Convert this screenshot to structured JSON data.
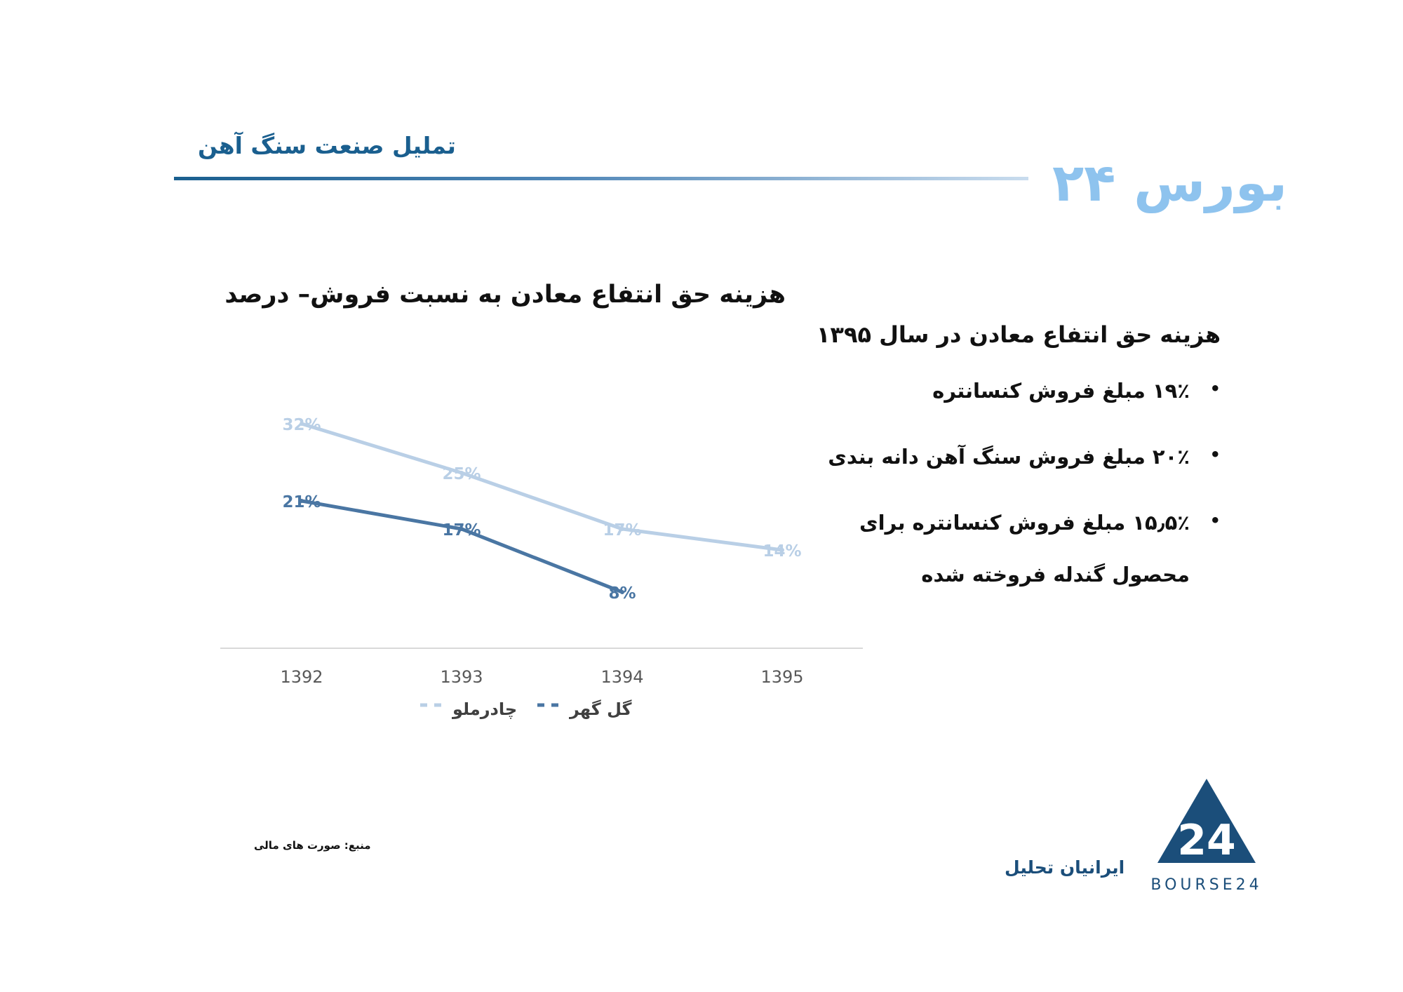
{
  "header": {
    "title": "تملیل صنعت سنگ آهن",
    "brand": "بورس ۲۴"
  },
  "chart_title": "هزینه حق انتفاع معادن به نسبت فروش– درصد",
  "chart_data": {
    "type": "line",
    "categories": [
      "1392",
      "1393",
      "1394",
      "1395"
    ],
    "series": [
      {
        "name": "چادرملو",
        "values": [
          32,
          25,
          17,
          14
        ],
        "labels": [
          "32%",
          "25%",
          "17%",
          "14%"
        ],
        "color": "#b9cfe6"
      },
      {
        "name": "گل گهر",
        "values": [
          21,
          17,
          8,
          null
        ],
        "labels": [
          "21%",
          "17%",
          "8%",
          ""
        ],
        "color": "#4a76a3"
      }
    ],
    "ylim": [
      0,
      40
    ],
    "grid": false,
    "legend": "bottom"
  },
  "panel": {
    "heading": "هزینه حق انتفاع معادن در سال ۱۳۹۵",
    "bullets": [
      "۱۹٪ مبلغ فروش کنسانتره",
      "۲۰٪ مبلغ فروش سنگ آهن دانه بندی",
      "۱۵٫۵٪ مبلغ فروش کنسانتره برای"
    ],
    "continuation": "محصول گندله فروخته شده",
    "bullet_glyph": "•"
  },
  "footer": {
    "source": "منبع: صورت های مالی",
    "company": "ایرانیان تحلیل",
    "logo_text": "BOURSE24",
    "logo_mark": "24"
  }
}
